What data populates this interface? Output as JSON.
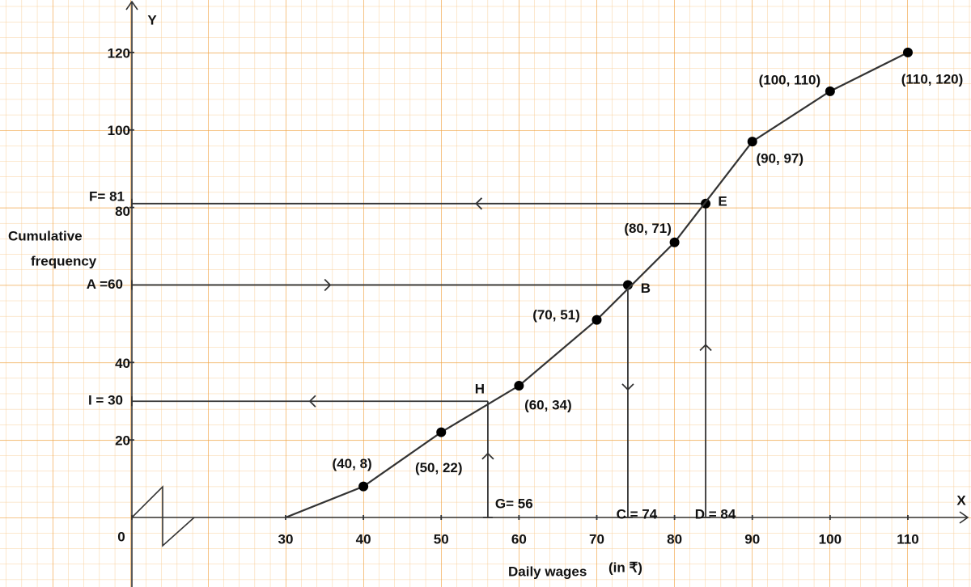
{
  "chart_data": {
    "type": "line",
    "x_axis_name": "X",
    "y_axis_name": "Y",
    "xlabel": "Daily wages",
    "xlabel_unit": "(in ₹)",
    "ylabel": [
      "Cumulative",
      "frequency"
    ],
    "x": [
      30,
      40,
      50,
      60,
      70,
      80,
      90,
      100,
      110
    ],
    "values": [
      0,
      8,
      22,
      34,
      51,
      71,
      97,
      110,
      120
    ],
    "value_labels": [
      null,
      "(40, 8)",
      "(50, 22)",
      "(60, 34)",
      "(70, 51)",
      "(80, 71)",
      "(90, 97)",
      "(100, 110)",
      "(110, 120)"
    ],
    "color": "#333333",
    "xlim": [
      0,
      117.7
    ],
    "ylim": [
      0,
      132.5
    ],
    "xticks": [
      0,
      30,
      40,
      50,
      60,
      70,
      80,
      90,
      100,
      110
    ],
    "yticks": [
      20,
      40,
      80,
      100,
      120
    ],
    "grid": true,
    "axis_break": true,
    "annotations": [
      {
        "label": "B",
        "x": 74,
        "y": 60,
        "x_label": "C = 74",
        "y_label": "A =60"
      },
      {
        "label": "E",
        "x": 84,
        "y": 81,
        "x_label": "D = 84",
        "y_label": "F= 81"
      },
      {
        "label": "H",
        "x": 56,
        "y": 30,
        "x_label": "G= 56",
        "y_label": "I = 30"
      }
    ]
  }
}
